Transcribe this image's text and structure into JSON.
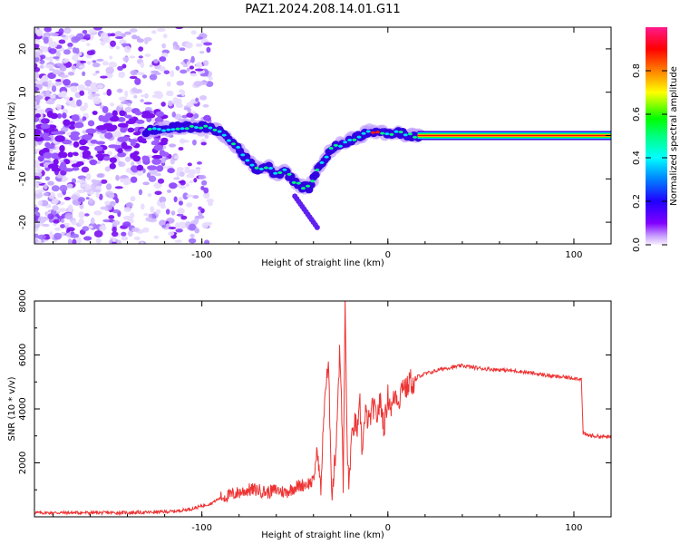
{
  "page_title": "PAZ1.2024.208.14.01.G11",
  "chart_data": [
    {
      "type": "heatmap",
      "xlabel": "Height of straight line (km)",
      "ylabel": "Frequency (Hz)",
      "xlim": [
        -190,
        120
      ],
      "ylim": [
        -25,
        25
      ],
      "xticks": [
        -100,
        0,
        100
      ],
      "yticks": [
        -20,
        -10,
        0,
        10,
        20
      ],
      "grid": false,
      "colorbar": {
        "label": "Normalized spectral amplitude",
        "range": [
          0,
          1
        ],
        "ticks": [
          "0.0",
          "0.2",
          "0.4",
          "0.6",
          "0.8"
        ],
        "colormap": [
          "#f8f0ff",
          "#8000ff",
          "#0000ff",
          "#00ffff",
          "#00ff00",
          "#ffff00",
          "#ff8000",
          "#ff0000",
          "#ff1a8c"
        ]
      },
      "ridge": {
        "description_points_x": [
          -130,
          -120,
          -110,
          -100,
          -90,
          -85,
          -80,
          -75,
          -70,
          -65,
          -60,
          -55,
          -50,
          -45,
          -42,
          -40,
          -38,
          -35,
          -30,
          -25,
          -20,
          -15,
          -10,
          -5,
          0,
          5,
          10,
          15,
          20,
          60,
          120
        ],
        "description_points_y": [
          1,
          1.5,
          2,
          2,
          1,
          -1,
          -3,
          -6,
          -8,
          -7,
          -9,
          -8,
          -11,
          -12,
          -12,
          -10,
          -8,
          -6,
          -3,
          -2,
          -1,
          0,
          1,
          1,
          0,
          1,
          0,
          0,
          0,
          0,
          0
        ]
      }
    },
    {
      "type": "line",
      "xlabel": "Height of straight line (km)",
      "ylabel": "SNR (10 * v/v)",
      "xlim": [
        -190,
        120
      ],
      "ylim": [
        0,
        8000
      ],
      "xticks": [
        -100,
        0,
        100
      ],
      "yticks": [
        2000,
        4000,
        6000,
        8000
      ],
      "grid": false,
      "series_color": "#ee3333",
      "x": [
        -190,
        -170,
        -150,
        -130,
        -115,
        -105,
        -95,
        -90,
        -85,
        -80,
        -75,
        -70,
        -65,
        -60,
        -55,
        -50,
        -45,
        -40,
        -38,
        -36,
        -34,
        -32,
        -30,
        -28,
        -26,
        -25,
        -24,
        -23,
        -22,
        -21,
        -20,
        -18,
        -16,
        -15,
        -14,
        -12,
        -10,
        -8,
        -6,
        -4,
        -2,
        0,
        2,
        4,
        6,
        8,
        10,
        12,
        14,
        16,
        20,
        25,
        30,
        40,
        50,
        60,
        70,
        80,
        90,
        100,
        104,
        105,
        106,
        110,
        120
      ],
      "y": [
        150,
        150,
        150,
        160,
        200,
        300,
        500,
        700,
        800,
        900,
        1000,
        1000,
        900,
        1000,
        900,
        1100,
        1200,
        1300,
        2500,
        1000,
        4500,
        5500,
        800,
        2500,
        6000,
        4800,
        1000,
        8000,
        3000,
        1000,
        2500,
        3500,
        3200,
        4200,
        2500,
        3800,
        3500,
        4100,
        3700,
        4300,
        3300,
        4500,
        4000,
        4600,
        4300,
        5000,
        4700,
        5100,
        4800,
        5200,
        5300,
        5400,
        5500,
        5600,
        5500,
        5450,
        5400,
        5300,
        5200,
        5150,
        5100,
        3100,
        3050,
        3000,
        2950
      ]
    }
  ]
}
